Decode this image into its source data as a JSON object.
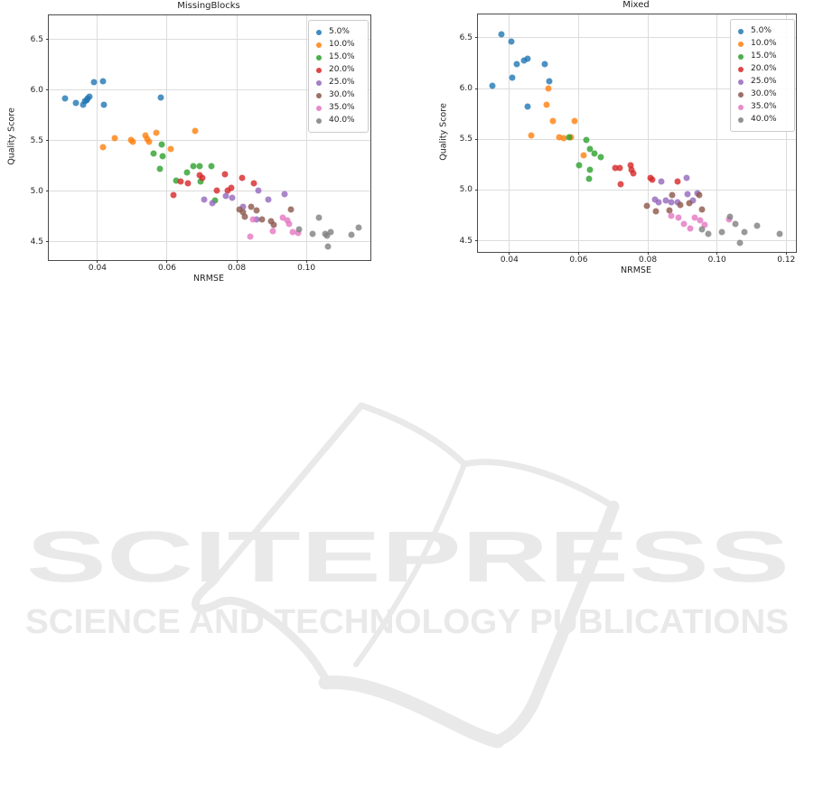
{
  "watermark": {
    "brand": "SCITEPRESS",
    "tagline": "SCIENCE AND TECHNOLOGY PUBLICATIONS",
    "color": "#e9e9e9",
    "logo": "open-book-logo"
  },
  "chart_data": [
    {
      "type": "scatter",
      "title": "MissingBlocks",
      "xlabel": "NRMSE",
      "ylabel": "Quality Score",
      "xlim": [
        0.026,
        0.1184
      ],
      "ylim": [
        4.32,
        6.74
      ],
      "xticks": [
        0.04,
        0.06,
        0.08,
        0.1
      ],
      "yticks": [
        4.5,
        5.0,
        5.5,
        6.0,
        6.5
      ],
      "grid": true,
      "legend_position": "upper right",
      "series": [
        {
          "name": "5.0%",
          "color": "#1f77b4",
          "points": [
            [
              0.0307,
              5.92
            ],
            [
              0.0338,
              5.87
            ],
            [
              0.0359,
              5.86
            ],
            [
              0.0363,
              5.89
            ],
            [
              0.0368,
              5.9
            ],
            [
              0.0372,
              5.92
            ],
            [
              0.0378,
              5.94
            ],
            [
              0.0389,
              6.08
            ],
            [
              0.0416,
              6.09
            ],
            [
              0.0419,
              5.86
            ],
            [
              0.0581,
              5.93
            ]
          ]
        },
        {
          "name": "10.0%",
          "color": "#ff7f0e",
          "points": [
            [
              0.0417,
              5.44
            ],
            [
              0.0449,
              5.53
            ],
            [
              0.0496,
              5.51
            ],
            [
              0.0502,
              5.49
            ],
            [
              0.0538,
              5.55
            ],
            [
              0.0542,
              5.52
            ],
            [
              0.0548,
              5.49
            ],
            [
              0.0568,
              5.58
            ],
            [
              0.061,
              5.42
            ],
            [
              0.0681,
              5.6
            ]
          ]
        },
        {
          "name": "15.0%",
          "color": "#2ca02c",
          "points": [
            [
              0.056,
              5.37
            ],
            [
              0.058,
              5.22
            ],
            [
              0.0584,
              5.46
            ],
            [
              0.0588,
              5.35
            ],
            [
              0.0625,
              5.11
            ],
            [
              0.0656,
              5.19
            ],
            [
              0.0675,
              5.25
            ],
            [
              0.0693,
              5.25
            ],
            [
              0.0697,
              5.1
            ],
            [
              0.0727,
              5.25
            ],
            [
              0.0737,
              4.91
            ]
          ]
        },
        {
          "name": "20.0%",
          "color": "#d62728",
          "points": [
            [
              0.0619,
              4.96
            ],
            [
              0.0639,
              5.1
            ],
            [
              0.066,
              5.08
            ],
            [
              0.0694,
              5.16
            ],
            [
              0.07,
              5.13
            ],
            [
              0.0743,
              5.01
            ],
            [
              0.0766,
              5.17
            ],
            [
              0.0775,
              5.01
            ],
            [
              0.0785,
              5.03
            ],
            [
              0.0816,
              5.13
            ],
            [
              0.0848,
              5.08
            ]
          ]
        },
        {
          "name": "25.0%",
          "color": "#9467bd",
          "points": [
            [
              0.0706,
              4.92
            ],
            [
              0.0729,
              4.88
            ],
            [
              0.077,
              4.95
            ],
            [
              0.0788,
              4.94
            ],
            [
              0.0818,
              4.85
            ],
            [
              0.0858,
              4.72
            ],
            [
              0.0862,
              5.01
            ],
            [
              0.089,
              4.92
            ],
            [
              0.0938,
              4.97
            ]
          ]
        },
        {
          "name": "30.0%",
          "color": "#8c564b",
          "points": [
            [
              0.0808,
              4.82
            ],
            [
              0.0818,
              4.79
            ],
            [
              0.0822,
              4.75
            ],
            [
              0.0841,
              4.85
            ],
            [
              0.0857,
              4.81
            ],
            [
              0.0872,
              4.72
            ],
            [
              0.0898,
              4.7
            ],
            [
              0.0905,
              4.67
            ],
            [
              0.0955,
              4.82
            ]
          ]
        },
        {
          "name": "35.0%",
          "color": "#e377c2",
          "points": [
            [
              0.084,
              4.55
            ],
            [
              0.0846,
              4.72
            ],
            [
              0.0903,
              4.61
            ],
            [
              0.0932,
              4.74
            ],
            [
              0.0944,
              4.71
            ],
            [
              0.0951,
              4.68
            ],
            [
              0.0962,
              4.6
            ],
            [
              0.0976,
              4.59
            ]
          ]
        },
        {
          "name": "40.0%",
          "color": "#7f7f7f",
          "points": [
            [
              0.098,
              4.62
            ],
            [
              0.1018,
              4.58
            ],
            [
              0.1037,
              4.74
            ],
            [
              0.1054,
              4.58
            ],
            [
              0.106,
              4.56
            ],
            [
              0.1061,
              4.45
            ],
            [
              0.107,
              4.6
            ],
            [
              0.113,
              4.57
            ],
            [
              0.115,
              4.64
            ]
          ]
        }
      ]
    },
    {
      "type": "scatter",
      "title": "Mixed",
      "xlabel": "NRMSE",
      "ylabel": "Quality Score",
      "xlim": [
        0.0309,
        0.1228
      ],
      "ylim": [
        4.39,
        6.73
      ],
      "xticks": [
        0.04,
        0.06,
        0.08,
        0.1,
        0.12
      ],
      "yticks": [
        4.5,
        5.0,
        5.5,
        6.0,
        6.5
      ],
      "grid": true,
      "legend_position": "upper right",
      "series": [
        {
          "name": "5.0%",
          "color": "#1f77b4",
          "points": [
            [
              0.035,
              6.03
            ],
            [
              0.0378,
              6.53
            ],
            [
              0.0405,
              6.46
            ],
            [
              0.0408,
              6.11
            ],
            [
              0.042,
              6.24
            ],
            [
              0.0443,
              6.28
            ],
            [
              0.0452,
              6.29
            ],
            [
              0.0452,
              5.82
            ],
            [
              0.0501,
              6.24
            ],
            [
              0.0516,
              6.07
            ]
          ]
        },
        {
          "name": "10.0%",
          "color": "#ff7f0e",
          "points": [
            [
              0.0464,
              5.54
            ],
            [
              0.0512,
              6.0
            ],
            [
              0.0507,
              5.84
            ],
            [
              0.0526,
              5.68
            ],
            [
              0.0543,
              5.52
            ],
            [
              0.0556,
              5.51
            ],
            [
              0.0577,
              5.52
            ],
            [
              0.0589,
              5.68
            ],
            [
              0.0615,
              5.34
            ]
          ]
        },
        {
          "name": "15.0%",
          "color": "#2ca02c",
          "points": [
            [
              0.0573,
              5.52
            ],
            [
              0.0602,
              5.24
            ],
            [
              0.0623,
              5.49
            ],
            [
              0.0634,
              5.4
            ],
            [
              0.0647,
              5.36
            ],
            [
              0.0632,
              5.2
            ],
            [
              0.0629,
              5.11
            ],
            [
              0.0665,
              5.32
            ]
          ]
        },
        {
          "name": "20.0%",
          "color": "#d62728",
          "points": [
            [
              0.0706,
              5.22
            ],
            [
              0.0719,
              5.22
            ],
            [
              0.0721,
              5.06
            ],
            [
              0.0749,
              5.24
            ],
            [
              0.0753,
              5.2
            ],
            [
              0.0758,
              5.16
            ],
            [
              0.0808,
              5.12
            ],
            [
              0.0814,
              5.1
            ],
            [
              0.0886,
              5.08
            ]
          ]
        },
        {
          "name": "25.0%",
          "color": "#9467bd",
          "points": [
            [
              0.0822,
              4.91
            ],
            [
              0.083,
              4.88
            ],
            [
              0.0838,
              5.08
            ],
            [
              0.0852,
              4.9
            ],
            [
              0.0868,
              4.88
            ],
            [
              0.0887,
              4.88
            ],
            [
              0.0913,
              5.12
            ],
            [
              0.0915,
              4.96
            ],
            [
              0.0931,
              4.9
            ],
            [
              0.0944,
              4.97
            ]
          ]
        },
        {
          "name": "30.0%",
          "color": "#8c564b",
          "points": [
            [
              0.0797,
              4.84
            ],
            [
              0.0823,
              4.79
            ],
            [
              0.0862,
              4.8
            ],
            [
              0.0871,
              4.95
            ],
            [
              0.0893,
              4.85
            ],
            [
              0.0919,
              4.87
            ],
            [
              0.0948,
              4.95
            ],
            [
              0.0956,
              4.81
            ]
          ]
        },
        {
          "name": "35.0%",
          "color": "#e377c2",
          "points": [
            [
              0.0868,
              4.75
            ],
            [
              0.0888,
              4.73
            ],
            [
              0.0903,
              4.67
            ],
            [
              0.0922,
              4.62
            ],
            [
              0.0935,
              4.73
            ],
            [
              0.0952,
              4.7
            ],
            [
              0.0965,
              4.66
            ],
            [
              0.1035,
              4.71
            ]
          ]
        },
        {
          "name": "40.0%",
          "color": "#7f7f7f",
          "points": [
            [
              0.0957,
              4.61
            ],
            [
              0.0974,
              4.57
            ],
            [
              0.1015,
              4.59
            ],
            [
              0.1038,
              4.74
            ],
            [
              0.1054,
              4.67
            ],
            [
              0.1067,
              4.48
            ],
            [
              0.1078,
              4.59
            ],
            [
              0.1115,
              4.65
            ],
            [
              0.1182,
              4.57
            ]
          ]
        }
      ]
    }
  ]
}
